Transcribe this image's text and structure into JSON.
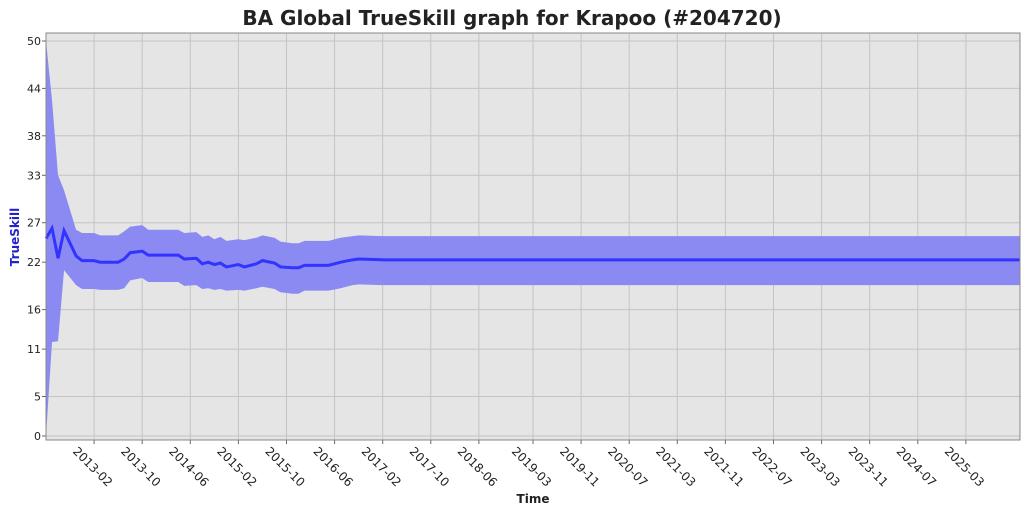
{
  "chart_data": {
    "type": "line",
    "title": "BA Global TrueSkill graph for Krapoo (#204720)",
    "x_label": "Time",
    "y_label": "TrueSkill",
    "x": [
      "2012-06",
      "2012-07",
      "2012-08",
      "2012-09",
      "2012-11",
      "2012-12",
      "2013-02",
      "2013-03",
      "2013-06",
      "2013-07",
      "2013-08",
      "2013-10",
      "2013-11",
      "2014-04",
      "2014-05",
      "2014-07",
      "2014-08",
      "2014-09",
      "2014-10",
      "2014-11",
      "2014-12",
      "2015-02",
      "2015-03",
      "2015-05",
      "2015-06",
      "2015-08",
      "2015-09",
      "2015-11",
      "2015-12",
      "2016-01",
      "2016-05",
      "2016-07",
      "2016-09",
      "2016-10",
      "2017-02",
      "2025-12"
    ],
    "values": [
      25.0,
      26.3,
      22.5,
      26.0,
      22.8,
      22.2,
      22.2,
      22.0,
      22.0,
      22.4,
      23.2,
      23.4,
      22.9,
      22.9,
      22.4,
      22.5,
      21.8,
      22.0,
      21.7,
      21.9,
      21.4,
      21.7,
      21.4,
      21.8,
      22.2,
      21.9,
      21.4,
      21.3,
      21.3,
      21.6,
      21.6,
      22.0,
      22.3,
      22.4,
      22.3,
      22.3
    ],
    "upper": [
      50,
      42.5,
      33.0,
      31.1,
      26.1,
      25.7,
      25.7,
      25.4,
      25.4,
      25.9,
      26.5,
      26.7,
      26.1,
      26.1,
      25.7,
      25.8,
      25.2,
      25.4,
      24.9,
      25.2,
      24.7,
      24.9,
      24.8,
      25.1,
      25.4,
      25.1,
      24.6,
      24.4,
      24.4,
      24.7,
      24.7,
      25.1,
      25.3,
      25.4,
      25.3,
      25.3
    ],
    "lower": [
      0,
      11.9,
      12.0,
      21.0,
      19.1,
      18.6,
      18.6,
      18.5,
      18.5,
      18.7,
      19.7,
      20.0,
      19.5,
      19.5,
      19.0,
      19.1,
      18.6,
      18.7,
      18.5,
      18.6,
      18.4,
      18.5,
      18.4,
      18.7,
      18.9,
      18.6,
      18.2,
      18.0,
      18.0,
      18.4,
      18.4,
      18.7,
      19.1,
      19.2,
      19.1,
      19.1
    ],
    "color": "#3333ff",
    "band_color": "#8a8af2",
    "xlim": [
      "2012-06",
      "2025-12"
    ],
    "xticks": [
      "2013-02",
      "2013-10",
      "2014-06",
      "2015-02",
      "2015-10",
      "2016-06",
      "2017-02",
      "2017-10",
      "2018-06",
      "2019-03",
      "2019-11",
      "2020-07",
      "2021-03",
      "2021-11",
      "2022-07",
      "2023-03",
      "2023-11",
      "2024-07",
      "2025-03"
    ],
    "ylim": [
      0,
      50
    ],
    "yticks": [
      0,
      5,
      11,
      16,
      22,
      27,
      33,
      38,
      44,
      50
    ],
    "grid": true
  }
}
